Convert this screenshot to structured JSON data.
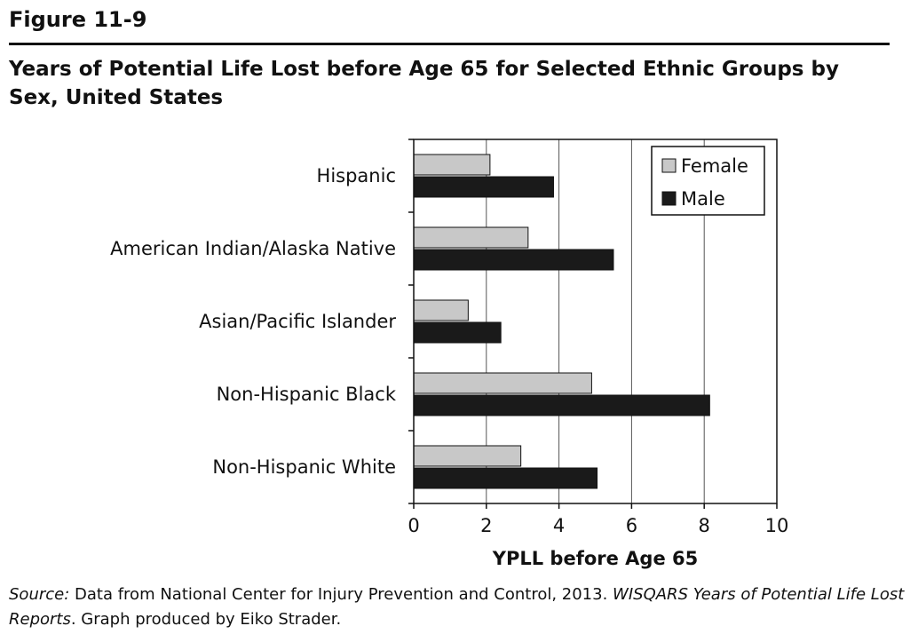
{
  "figure_label": "Figure 11-9",
  "title": "Years of Potential Life Lost before Age 65 for Selected Ethnic Groups by Sex, United States",
  "source": {
    "prefix": "Source:",
    "text_a": " Data from National Center for Injury Prevention and Control, 2013. ",
    "italic": "WISQARS Years of Potential Life Lost Reports",
    "text_b": ". Graph produced by Eiko Strader."
  },
  "chart_data": {
    "type": "bar",
    "orientation": "horizontal",
    "categories": [
      "Hispanic",
      "American Indian/Alaska Native",
      "Asian/Pacific Islander",
      "Non-Hispanic Black",
      "Non-Hispanic White"
    ],
    "series": [
      {
        "name": "Female",
        "color": "#c8c8c8",
        "values": [
          2.1,
          3.15,
          1.5,
          4.9,
          2.95
        ]
      },
      {
        "name": "Male",
        "color": "#1a1a1a",
        "values": [
          3.85,
          5.5,
          2.4,
          8.15,
          5.05
        ]
      }
    ],
    "xlabel": "YPLL before Age 65",
    "ylabel": "",
    "xlim": [
      0,
      10
    ],
    "xticks": [
      0,
      2,
      4,
      6,
      8,
      10
    ],
    "grid": "vertical",
    "legend": "top-right"
  }
}
